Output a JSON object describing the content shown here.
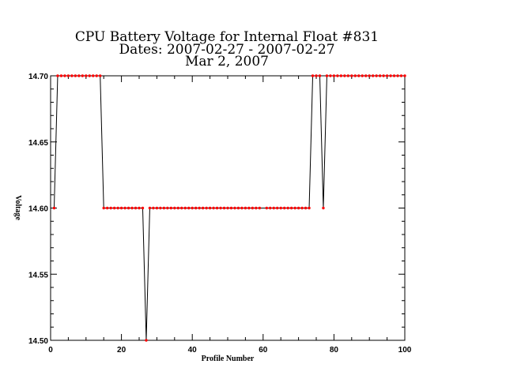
{
  "chart_data": {
    "type": "line",
    "title_lines": [
      "CPU Battery Voltage for Internal Float #831",
      "Dates:  2007-02-27 -  2007-02-27",
      "Mar  2, 2007"
    ],
    "xlabel": "Profile Number",
    "ylabel": "Voltage",
    "xlim": [
      0,
      100
    ],
    "ylim": [
      14.5,
      14.7
    ],
    "x_ticks": [
      "0",
      "20",
      "40",
      "60",
      "80",
      "100"
    ],
    "y_ticks": [
      "14.50",
      "14.55",
      "14.60",
      "14.65",
      "14.70"
    ],
    "grid": false,
    "line_color": "#000000",
    "marker_color": "#ff0000",
    "series": [
      {
        "x": [
          1,
          2,
          3,
          4,
          5,
          6,
          7,
          8,
          9,
          10,
          11,
          12,
          13,
          14,
          15,
          16,
          17,
          18,
          19,
          20,
          21,
          22,
          23,
          24,
          25,
          26,
          27,
          28,
          29,
          30,
          31,
          32,
          33,
          34,
          35,
          36,
          37,
          38,
          39,
          40,
          41,
          42,
          43,
          44,
          45,
          46,
          47,
          48,
          49,
          50,
          51,
          52,
          53,
          54,
          55,
          56,
          57,
          58,
          59,
          61,
          62,
          63,
          64,
          65,
          66,
          67,
          68,
          69,
          70,
          71,
          72,
          73,
          74,
          75,
          76,
          77,
          78,
          79,
          80,
          81,
          82,
          83,
          84,
          85,
          86,
          87,
          88,
          89,
          90,
          91,
          92,
          93,
          94,
          95,
          96,
          97,
          98,
          99,
          100
        ],
        "y": [
          14.6,
          14.7,
          14.7,
          14.7,
          14.7,
          14.7,
          14.7,
          14.7,
          14.7,
          14.7,
          14.7,
          14.7,
          14.7,
          14.7,
          14.6,
          14.6,
          14.6,
          14.6,
          14.6,
          14.6,
          14.6,
          14.6,
          14.6,
          14.6,
          14.6,
          14.6,
          14.5,
          14.6,
          14.6,
          14.6,
          14.6,
          14.6,
          14.6,
          14.6,
          14.6,
          14.6,
          14.6,
          14.6,
          14.6,
          14.6,
          14.6,
          14.6,
          14.6,
          14.6,
          14.6,
          14.6,
          14.6,
          14.6,
          14.6,
          14.6,
          14.6,
          14.6,
          14.6,
          14.6,
          14.6,
          14.6,
          14.6,
          14.6,
          14.6,
          14.6,
          14.6,
          14.6,
          14.6,
          14.6,
          14.6,
          14.6,
          14.6,
          14.6,
          14.6,
          14.6,
          14.6,
          14.6,
          14.7,
          14.7,
          14.7,
          14.6,
          14.7,
          14.7,
          14.7,
          14.7,
          14.7,
          14.7,
          14.7,
          14.7,
          14.7,
          14.7,
          14.7,
          14.7,
          14.7,
          14.7,
          14.7,
          14.7,
          14.7,
          14.7,
          14.7,
          14.7,
          14.7,
          14.7,
          14.7
        ]
      }
    ]
  }
}
